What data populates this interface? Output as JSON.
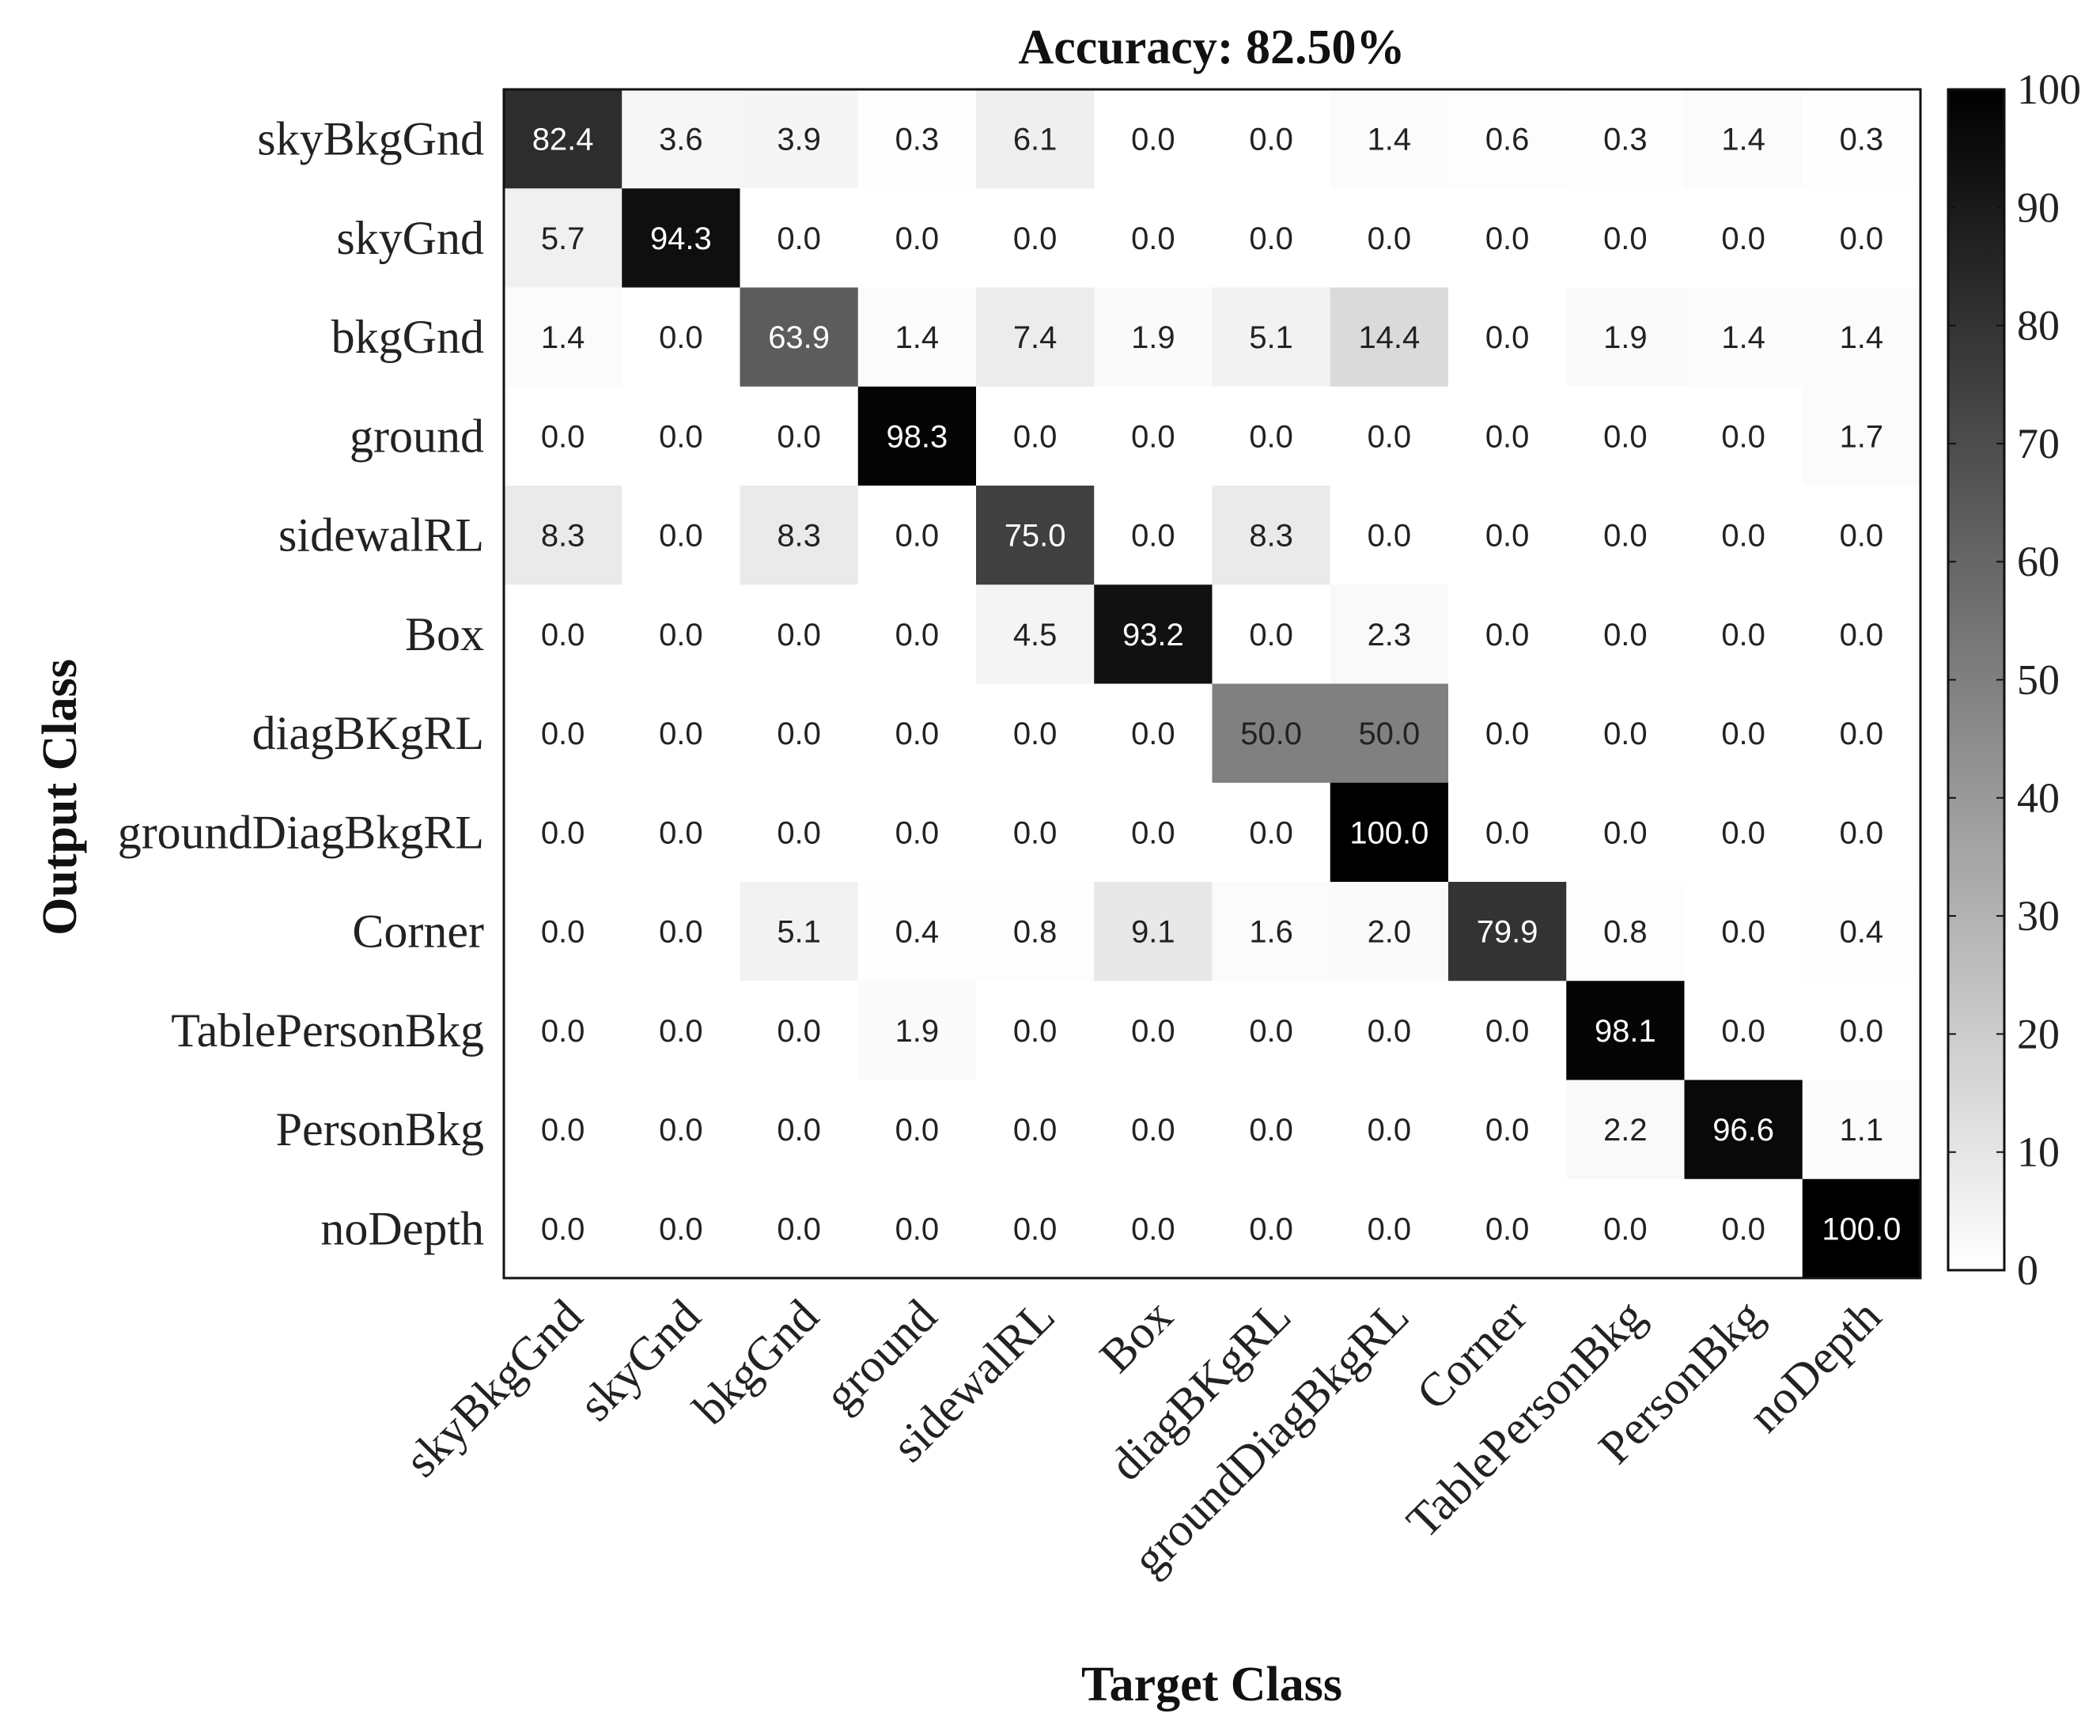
{
  "chart_data": {
    "type": "heatmap",
    "title": "Accuracy: 82.50%",
    "xlabel": "Target Class",
    "ylabel": "Output Class",
    "categories": [
      "skyBkgGnd",
      "skyGnd",
      "bkgGnd",
      "ground",
      "sidewalRL",
      "Box",
      "diagBKgRL",
      "groundDiagBkgRL",
      "Corner",
      "TablePersonBkg",
      "PersonBkg",
      "noDepth"
    ],
    "matrix": [
      [
        "82.4",
        "3.6",
        "3.9",
        "0.3",
        "6.1",
        "0.0",
        "0.0",
        "1.4",
        "0.6",
        "0.3",
        "1.4",
        "0.3"
      ],
      [
        "5.7",
        "94.3",
        "0.0",
        "0.0",
        "0.0",
        "0.0",
        "0.0",
        "0.0",
        "0.0",
        "0.0",
        "0.0",
        "0.0"
      ],
      [
        "1.4",
        "0.0",
        "63.9",
        "1.4",
        "7.4",
        "1.9",
        "5.1",
        "14.4",
        "0.0",
        "1.9",
        "1.4",
        "1.4"
      ],
      [
        "0.0",
        "0.0",
        "0.0",
        "98.3",
        "0.0",
        "0.0",
        "0.0",
        "0.0",
        "0.0",
        "0.0",
        "0.0",
        "1.7"
      ],
      [
        "8.3",
        "0.0",
        "8.3",
        "0.0",
        "75.0",
        "0.0",
        "8.3",
        "0.0",
        "0.0",
        "0.0",
        "0.0",
        "0.0"
      ],
      [
        "0.0",
        "0.0",
        "0.0",
        "0.0",
        "4.5",
        "93.2",
        "0.0",
        "2.3",
        "0.0",
        "0.0",
        "0.0",
        "0.0"
      ],
      [
        "0.0",
        "0.0",
        "0.0",
        "0.0",
        "0.0",
        "0.0",
        "50.0",
        "50.0",
        "0.0",
        "0.0",
        "0.0",
        "0.0"
      ],
      [
        "0.0",
        "0.0",
        "0.0",
        "0.0",
        "0.0",
        "0.0",
        "0.0",
        "100.0",
        "0.0",
        "0.0",
        "0.0",
        "0.0"
      ],
      [
        "0.0",
        "0.0",
        "5.1",
        "0.4",
        "0.8",
        "9.1",
        "1.6",
        "2.0",
        "79.9",
        "0.8",
        "0.0",
        "0.4"
      ],
      [
        "0.0",
        "0.0",
        "0.0",
        "1.9",
        "0.0",
        "0.0",
        "0.0",
        "0.0",
        "0.0",
        "98.1",
        "0.0",
        "0.0"
      ],
      [
        "0.0",
        "0.0",
        "0.0",
        "0.0",
        "0.0",
        "0.0",
        "0.0",
        "0.0",
        "0.0",
        "2.2",
        "96.6",
        "1.1"
      ],
      [
        "0.0",
        "0.0",
        "0.0",
        "0.0",
        "0.0",
        "0.0",
        "0.0",
        "0.0",
        "0.0",
        "0.0",
        "0.0",
        "100.0"
      ]
    ],
    "colorbar": {
      "range": [
        0,
        100
      ],
      "ticks": [
        "0",
        "10",
        "20",
        "30",
        "40",
        "50",
        "60",
        "70",
        "80",
        "90",
        "100"
      ],
      "colormap": "white-to-black"
    },
    "grid": false,
    "legend": "colorbar-right"
  }
}
